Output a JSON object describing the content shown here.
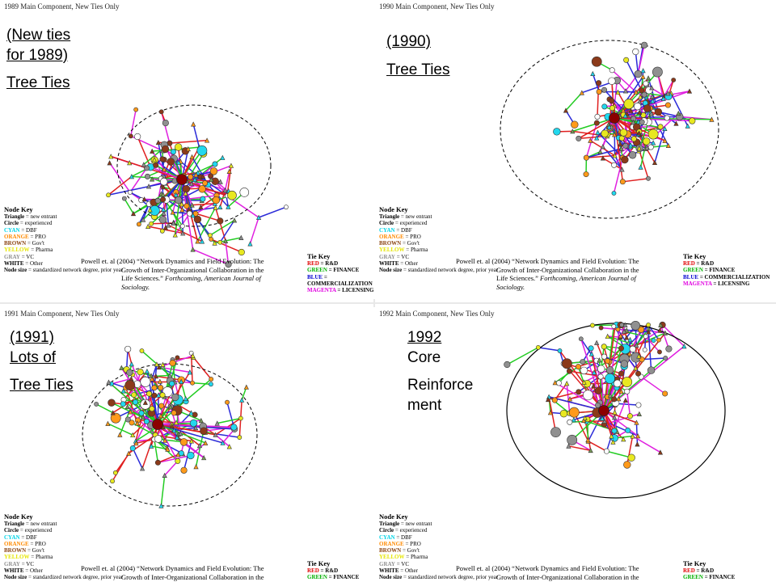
{
  "panels": [
    {
      "title": "1989 Main Component, New Ties Only",
      "overlay": [
        "(New ties",
        "for 1989)",
        "",
        "Tree Ties"
      ],
      "core": "dashed"
    },
    {
      "title": "1990 Main Component, New Ties Only",
      "overlay": [
        "(1990)",
        "",
        "Tree Ties"
      ],
      "core": "dashed"
    },
    {
      "title": "1991 Main Component, New Ties Only",
      "overlay": [
        "(1991)",
        "Lots of",
        "",
        "Tree Ties"
      ],
      "core": "dashed"
    },
    {
      "title": "1992 Main Component, New Ties Only",
      "overlay": [
        "1992",
        "Core",
        "",
        "Reinforce",
        "ment"
      ],
      "core": "solid"
    }
  ],
  "node_key": {
    "heading": "Node Key",
    "lines": [
      {
        "term": "Triangle",
        "desc": " = new entrant",
        "color": "#000000"
      },
      {
        "term": "Circle",
        "desc": " = experienced",
        "color": "#000000"
      },
      {
        "term": "CYAN",
        "desc": " = DBF",
        "color": "#00d4e6"
      },
      {
        "term": "ORANGE",
        "desc": " = PRO",
        "color": "#ff8a00"
      },
      {
        "term": "BROWN",
        "desc": " = Gov't",
        "color": "#8b4513"
      },
      {
        "term": "YELLOW",
        "desc": " = Pharma",
        "color": "#e6e600"
      },
      {
        "term": "GRAY",
        "desc": " = VC",
        "color": "#909090"
      },
      {
        "term": "WHITE",
        "desc": " = Other",
        "color": "#000000"
      },
      {
        "term": "Node size",
        "desc": " = standardized network degree, prior year",
        "color": "#000000"
      }
    ]
  },
  "citation": {
    "line1": "Powell et. al (2004) “Network Dynamics and Field Evolution: The",
    "line2": "Growth of Inter-Organizational Collaboration in the",
    "line3_a": "Life Sciences.” ",
    "line3_b": "Forthcoming, American Journal of",
    "line4": "Sociology."
  },
  "tie_key": {
    "heading": "Tie Key",
    "lines": [
      {
        "term": "RED",
        "desc": " = R&D",
        "color": "#e00000"
      },
      {
        "term": "GREEN",
        "desc": " = FINANCE",
        "color": "#00b000"
      },
      {
        "term": "BLUE",
        "desc": " = COMMERCIALIZATION",
        "color": "#0000d0"
      },
      {
        "term": "MAGENTA",
        "desc": " = LICENSING",
        "color": "#e000e0"
      }
    ]
  },
  "colors": {
    "edge": [
      "#e02020",
      "#22cc22",
      "#2a2ad8",
      "#e020e0"
    ],
    "node": [
      "#22d8ee",
      "#e8e820",
      "#8b3a1a",
      "#909090",
      "#ffffff",
      "#ff9a1a"
    ],
    "hub": "#8b0000"
  }
}
